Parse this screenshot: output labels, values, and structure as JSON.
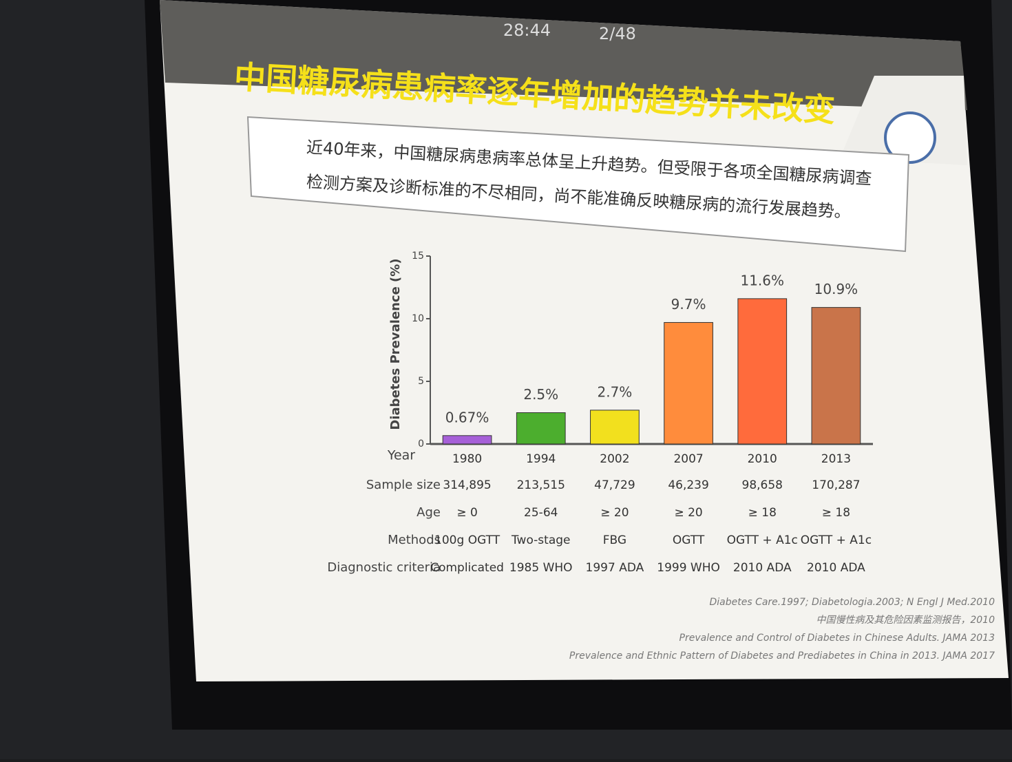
{
  "header": {
    "timer": "28:44",
    "page": "2/48"
  },
  "slide_title": "中国糖尿病患病率逐年增加的趋势并未改变",
  "summary": [
    "近40年来，中国糖尿病患病率总体呈上升趋势。但受限于各项全国糖尿病调查",
    "检测方案及诊断标准的不尽相同，尚不能准确反映糖尿病的流行发展趋势。"
  ],
  "chart_data": {
    "type": "bar",
    "ylabel": "Diabetes Prevalence (%)",
    "xlabel": "Year",
    "categories": [
      "1980",
      "1994",
      "2002",
      "2007",
      "2010",
      "2013"
    ],
    "values": [
      0.67,
      2.5,
      2.7,
      9.7,
      11.6,
      10.9
    ],
    "value_labels": [
      "0.67%",
      "2.5%",
      "2.7%",
      "9.7%",
      "11.6%",
      "10.9%"
    ],
    "colors": [
      "#a660d8",
      "#4cae2e",
      "#f2e01e",
      "#ff8c3c",
      "#ff6b3c",
      "#c9744a"
    ],
    "ylim": [
      0,
      15
    ],
    "yticks": [
      0,
      5,
      10,
      15
    ]
  },
  "table": {
    "rows": [
      {
        "label": "Sample size",
        "cells": [
          "314,895",
          "213,515",
          "47,729",
          "46,239",
          "98,658",
          "170,287"
        ]
      },
      {
        "label": "Age",
        "cells": [
          "≥ 0",
          "25-64",
          "≥ 20",
          "≥ 20",
          "≥ 18",
          "≥ 18"
        ]
      },
      {
        "label": "Methods",
        "cells": [
          "100g OGTT",
          "Two-stage",
          "FBG",
          "OGTT",
          "OGTT + A1c",
          "OGTT + A1c"
        ]
      },
      {
        "label": "Diagnostic criteria",
        "cells": [
          "Complicated",
          "1985 WHO",
          "1997 ADA",
          "1999 WHO",
          "2010 ADA",
          "2010 ADA"
        ]
      }
    ]
  },
  "references": [
    "Diabetes Care.1997; Diabetologia.2003; N Engl J Med.2010",
    "中国慢性病及其危险因素监测报告，2010",
    "Prevalence and Control of Diabetes in Chinese Adults. JAMA 2013",
    "Prevalence and Ethnic Pattern of Diabetes and Prediabetes in China in 2013. JAMA 2017"
  ]
}
